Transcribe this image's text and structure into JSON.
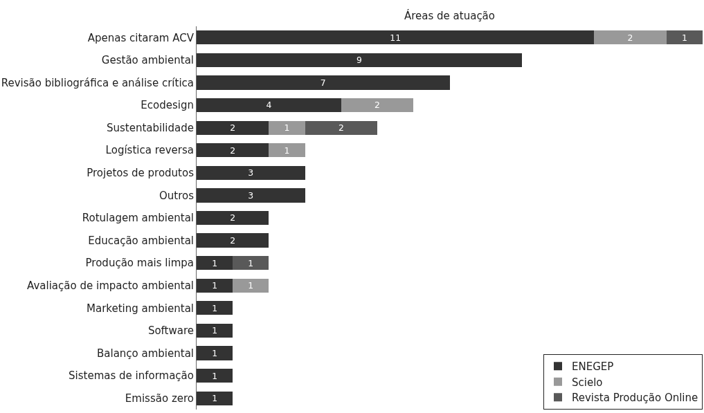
{
  "chart_data": {
    "type": "bar",
    "orientation": "horizontal",
    "stacked": true,
    "title": "Áreas de atuação",
    "categories": [
      "Apenas citaram ACV",
      "Gestão ambiental",
      "Revisão bibliográfica e análise crítica",
      "Ecodesign",
      "Sustentabilidade",
      "Logística reversa",
      "Projetos de produtos",
      "Outros",
      "Rotulagem ambiental",
      "Educação ambiental",
      "Produção mais limpa",
      "Avaliação de impacto ambiental",
      "Marketing ambiental",
      "Software",
      "Balanço ambiental",
      "Sistemas de informação",
      "Emissão zero"
    ],
    "series": [
      {
        "name": "ENEGEP",
        "color": "#333333",
        "values": [
          11,
          9,
          7,
          4,
          2,
          2,
          3,
          3,
          2,
          2,
          1,
          1,
          1,
          1,
          1,
          1,
          1
        ]
      },
      {
        "name": "Scielo",
        "color": "#999999",
        "values": [
          2,
          null,
          null,
          2,
          1,
          1,
          null,
          null,
          null,
          null,
          null,
          1,
          null,
          null,
          null,
          null,
          null
        ]
      },
      {
        "name": "Revista Produção Online",
        "color": "#595959",
        "values": [
          1,
          null,
          null,
          null,
          2,
          null,
          null,
          null,
          null,
          null,
          1,
          null,
          null,
          null,
          null,
          null,
          null
        ]
      }
    ],
    "xlim": [
      0,
      14
    ],
    "tick_labels": "y",
    "data_labels": true,
    "legend": "bottom right"
  }
}
